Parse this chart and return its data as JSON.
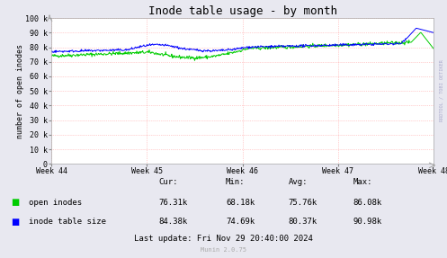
{
  "title": "Inode table usage - by month",
  "ylabel": "number of open inodes",
  "background_color": "#e8e8f0",
  "plot_bg_color": "#ffffff",
  "grid_color": "#ff9999",
  "x_tick_labels": [
    "Week 44",
    "Week 45",
    "Week 46",
    "Week 47",
    "Week 48"
  ],
  "ylim": [
    0,
    100000
  ],
  "y_ticks": [
    0,
    10000,
    20000,
    30000,
    40000,
    50000,
    60000,
    70000,
    80000,
    90000,
    100000
  ],
  "y_tick_labels": [
    "0",
    "10 k",
    "20 k",
    "30 k",
    "40 k",
    "50 k",
    "60 k",
    "70 k",
    "80 k",
    "90 k",
    "100 k"
  ],
  "open_inodes_color": "#00cc00",
  "inode_table_color": "#0000ff",
  "legend_labels": [
    "open inodes",
    "inode table size"
  ],
  "stats_header": [
    "Cur:",
    "Min:",
    "Avg:",
    "Max:"
  ],
  "stats_open": [
    "76.31k",
    "68.18k",
    "75.76k",
    "86.08k"
  ],
  "stats_table": [
    "84.38k",
    "74.69k",
    "80.37k",
    "90.98k"
  ],
  "last_update": "Last update: Fri Nov 29 20:40:00 2024",
  "munin_version": "Munin 2.0.75",
  "rrdtool_label": "RRDTOOL / TOBI OETIKER",
  "title_fontsize": 9,
  "axis_label_fontsize": 6,
  "tick_fontsize": 6,
  "legend_fontsize": 6.5,
  "stats_fontsize": 6.5
}
